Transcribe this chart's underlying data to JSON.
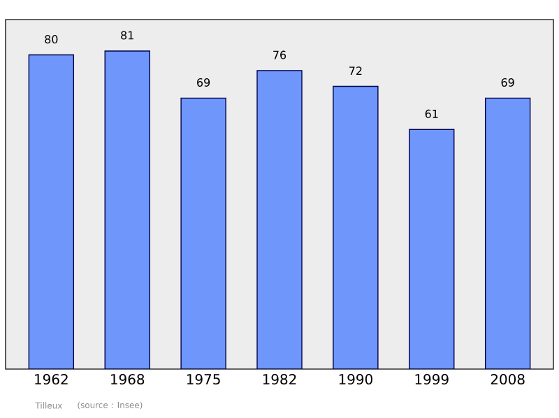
{
  "chart_data": {
    "type": "bar",
    "categories": [
      "1962",
      "1968",
      "1975",
      "1982",
      "1990",
      "1999",
      "2008"
    ],
    "values": [
      80,
      81,
      69,
      76,
      72,
      61,
      69
    ],
    "color": "#6f96fa",
    "ylim": [
      0,
      89
    ],
    "data_labels": true,
    "tick_labels": "x",
    "annotations": [
      "Tilleux",
      "(source : Insee)"
    ]
  }
}
